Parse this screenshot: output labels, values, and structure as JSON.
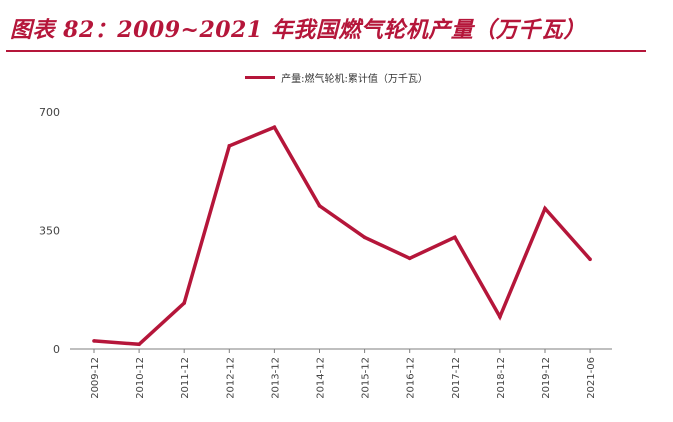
{
  "figure": {
    "title": "图表 82：2009~2021 年我国燃气轮机产量（万千瓦）"
  },
  "colors": {
    "accent": "#b5163a",
    "series": "#b5163a",
    "axis": "#7f7f7f",
    "text": "#444444"
  },
  "chart_data": {
    "type": "line",
    "title": "",
    "xlabel": "",
    "ylabel": "",
    "x": [
      "2009-12",
      "2010-12",
      "2011-12",
      "2012-12",
      "2013-12",
      "2014-12",
      "2015-12",
      "2016-12",
      "2017-12",
      "2018-12",
      "2019-12",
      "2021-06"
    ],
    "series": [
      {
        "name": "产量:燃气轮机:累计值（万千瓦）",
        "values": [
          24,
          14,
          136,
          600,
          655,
          423,
          330,
          268,
          330,
          95,
          415,
          265
        ]
      }
    ],
    "ylim": [
      0,
      700
    ],
    "yticks": [
      0,
      350,
      700
    ],
    "legend": "top-center",
    "grid": false
  }
}
